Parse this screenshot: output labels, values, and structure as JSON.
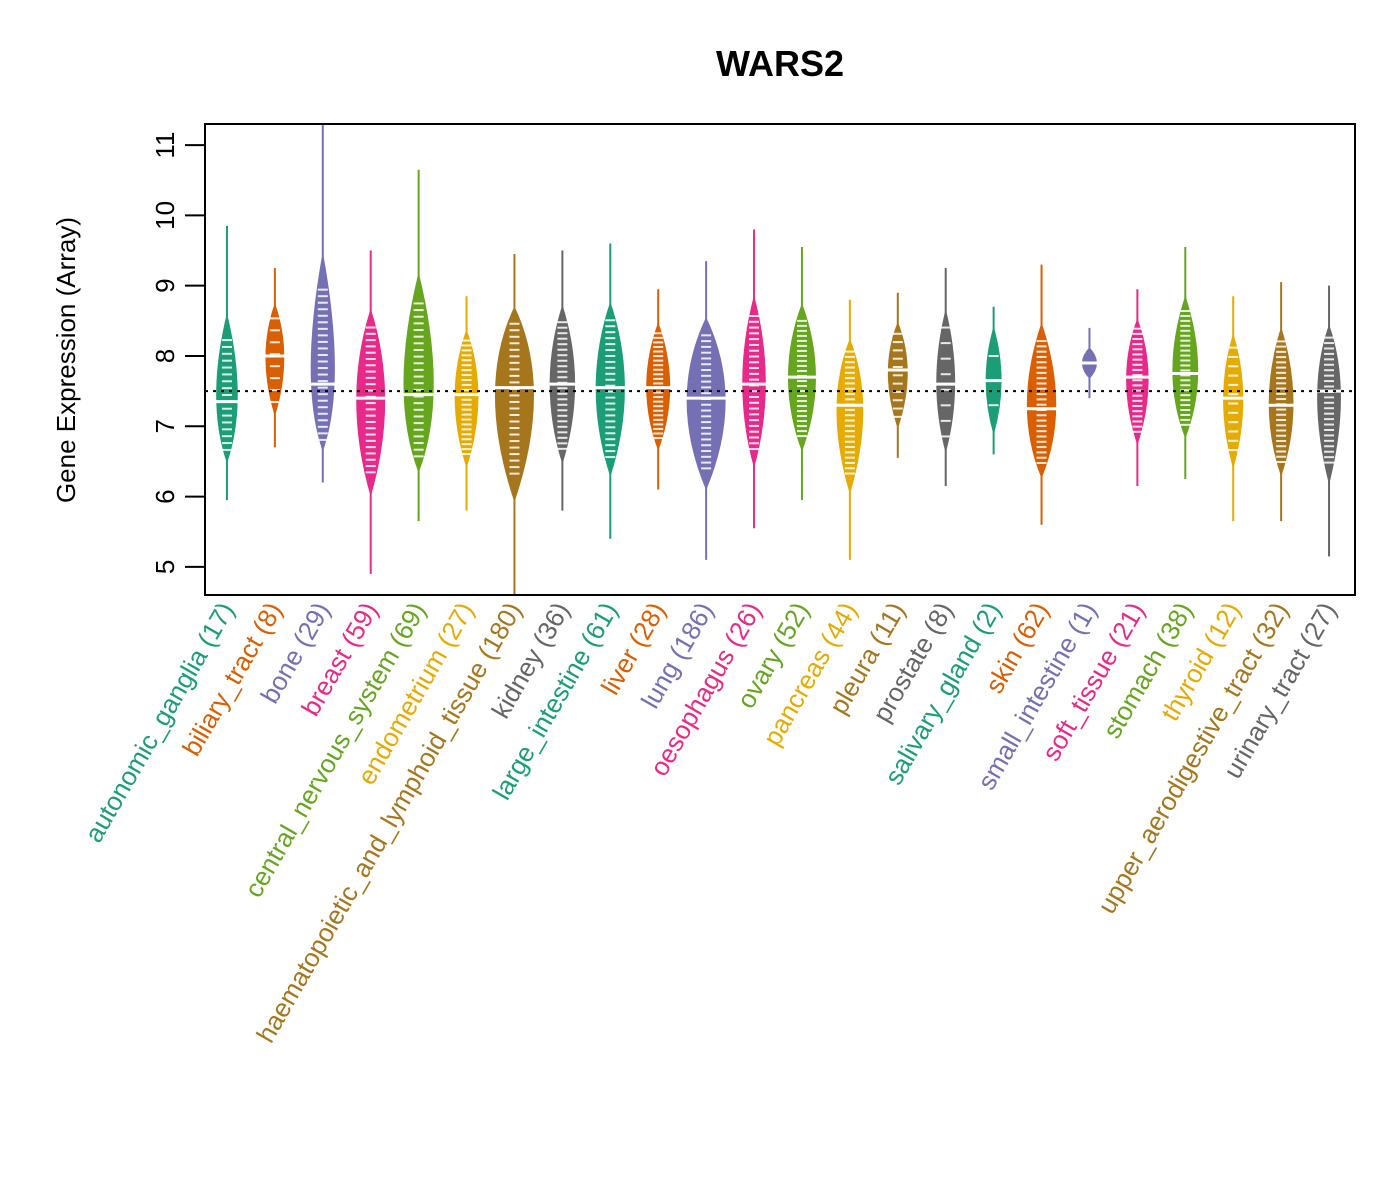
{
  "chart_data": {
    "type": "violin",
    "title": "WARS2",
    "xlabel": "",
    "ylabel": "Gene Expression (Array)",
    "ylim": [
      4.6,
      11.3
    ],
    "yticks": [
      5,
      6,
      7,
      8,
      9,
      10,
      11
    ],
    "reference_line": 7.5,
    "grid": false,
    "legend": "none",
    "categories": [
      {
        "name": "autonomic_ganglia",
        "n": 17,
        "color": "#1b9e77",
        "median": 7.35,
        "min": 5.95,
        "max": 9.85,
        "q1": 6.9,
        "q3": 7.6
      },
      {
        "name": "biliary_tract",
        "n": 8,
        "color": "#d95f02",
        "median": 8.0,
        "min": 6.7,
        "max": 9.25,
        "q1": 7.5,
        "q3": 8.35
      },
      {
        "name": "bone",
        "n": 29,
        "color": "#7570b3",
        "median": 7.6,
        "min": 6.2,
        "max": 11.3,
        "q1": 7.0,
        "q3": 8.0
      },
      {
        "name": "breast",
        "n": 59,
        "color": "#e7298a",
        "median": 7.4,
        "min": 4.9,
        "max": 9.5,
        "q1": 6.9,
        "q3": 8.0
      },
      {
        "name": "central_nervous_system",
        "n": 69,
        "color": "#66a61e",
        "median": 7.45,
        "min": 5.65,
        "max": 10.65,
        "q1": 6.9,
        "q3": 8.0
      },
      {
        "name": "endometrium",
        "n": 27,
        "color": "#e6ab02",
        "median": 7.45,
        "min": 5.8,
        "max": 8.85,
        "q1": 6.9,
        "q3": 8.0
      },
      {
        "name": "haematopoietic_and_lymphoid_tissue",
        "n": 180,
        "color": "#a6761d",
        "median": 7.55,
        "min": 4.6,
        "max": 9.45,
        "q1": 7.0,
        "q3": 8.1
      },
      {
        "name": "kidney",
        "n": 36,
        "color": "#666666",
        "median": 7.6,
        "min": 5.8,
        "max": 9.5,
        "q1": 7.0,
        "q3": 8.1
      },
      {
        "name": "large_intestine",
        "n": 61,
        "color": "#1b9e77",
        "median": 7.55,
        "min": 5.4,
        "max": 9.6,
        "q1": 7.0,
        "q3": 8.1
      },
      {
        "name": "liver",
        "n": 28,
        "color": "#d95f02",
        "median": 7.55,
        "min": 6.1,
        "max": 8.95,
        "q1": 7.1,
        "q3": 8.1
      },
      {
        "name": "lung",
        "n": 186,
        "color": "#7570b3",
        "median": 7.4,
        "min": 5.1,
        "max": 9.35,
        "q1": 6.9,
        "q3": 7.9
      },
      {
        "name": "oesophagus",
        "n": 26,
        "color": "#e7298a",
        "median": 7.6,
        "min": 5.55,
        "max": 9.8,
        "q1": 7.1,
        "q3": 8.1
      },
      {
        "name": "ovary",
        "n": 52,
        "color": "#66a61e",
        "median": 7.7,
        "min": 5.95,
        "max": 9.55,
        "q1": 7.2,
        "q3": 8.1
      },
      {
        "name": "pancreas",
        "n": 44,
        "color": "#e6ab02",
        "median": 7.3,
        "min": 5.1,
        "max": 8.8,
        "q1": 6.8,
        "q3": 7.8
      },
      {
        "name": "pleura",
        "n": 11,
        "color": "#a6761d",
        "median": 7.8,
        "min": 6.55,
        "max": 8.9,
        "q1": 7.3,
        "q3": 8.15
      },
      {
        "name": "prostate",
        "n": 8,
        "color": "#666666",
        "median": 7.6,
        "min": 6.15,
        "max": 9.25,
        "q1": 7.0,
        "q3": 8.2
      },
      {
        "name": "salivary_gland",
        "n": 2,
        "color": "#1b9e77",
        "median": 7.65,
        "min": 6.6,
        "max": 8.7,
        "q1": 7.1,
        "q3": 8.2
      },
      {
        "name": "skin",
        "n": 62,
        "color": "#d95f02",
        "median": 7.25,
        "min": 5.6,
        "max": 9.3,
        "q1": 6.8,
        "q3": 7.8
      },
      {
        "name": "small_intestine",
        "n": 1,
        "color": "#7570b3",
        "median": 7.9,
        "min": 7.4,
        "max": 8.4,
        "q1": 7.9,
        "q3": 7.9
      },
      {
        "name": "soft_tissue",
        "n": 21,
        "color": "#e7298a",
        "median": 7.7,
        "min": 6.15,
        "max": 8.95,
        "q1": 7.2,
        "q3": 8.2
      },
      {
        "name": "stomach",
        "n": 38,
        "color": "#66a61e",
        "median": 7.75,
        "min": 6.25,
        "max": 9.55,
        "q1": 7.3,
        "q3": 8.3
      },
      {
        "name": "thyroid",
        "n": 12,
        "color": "#e6ab02",
        "median": 7.4,
        "min": 5.65,
        "max": 8.85,
        "q1": 7.0,
        "q3": 7.9
      },
      {
        "name": "upper_aerodigestive_tract",
        "n": 32,
        "color": "#a6761d",
        "median": 7.3,
        "min": 5.65,
        "max": 9.05,
        "q1": 6.8,
        "q3": 7.9
      },
      {
        "name": "urinary_tract",
        "n": 27,
        "color": "#666666",
        "median": 7.5,
        "min": 5.15,
        "max": 9.0,
        "q1": 7.0,
        "q3": 8.0
      }
    ]
  }
}
